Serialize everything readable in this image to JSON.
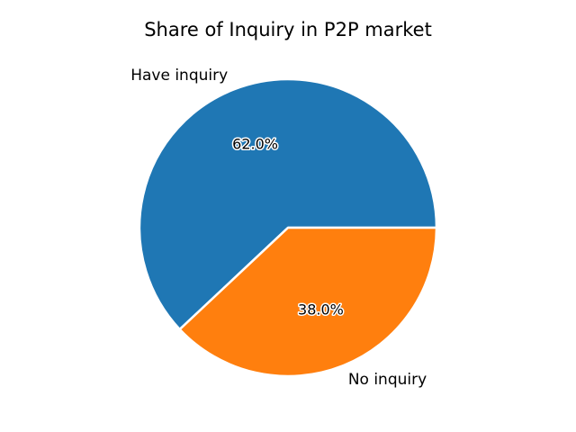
{
  "chart_data": {
    "type": "pie",
    "title": "Share of Inquiry in P2P market",
    "labels": [
      "Have inquiry",
      "No inquiry"
    ],
    "values": [
      62.0,
      38.0
    ],
    "percent_labels": [
      "62.0%",
      "38.0%"
    ],
    "colors": [
      "#1f77b4",
      "#ff7f0e"
    ],
    "start_angle_deg": 0,
    "direction": "counterclockwise",
    "legend": "none"
  }
}
